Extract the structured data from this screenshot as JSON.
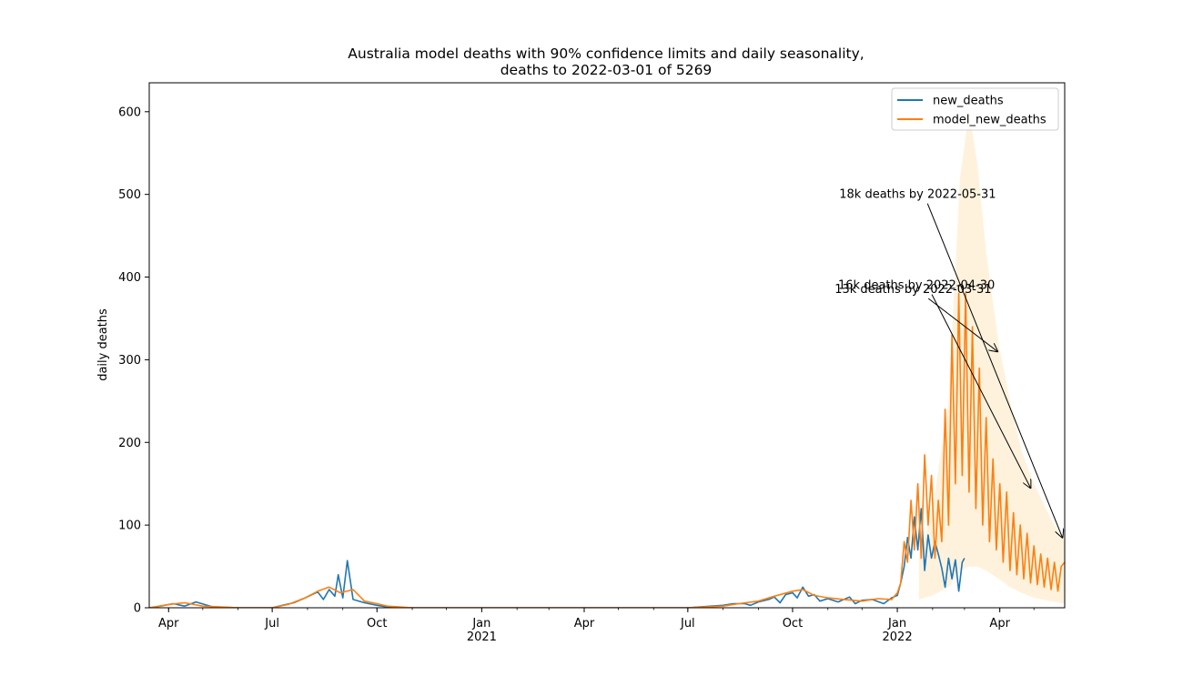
{
  "colors": {
    "new_deaths": "#1f77b4",
    "model_new_deaths": "#ff7f0e",
    "confidence_band": "#ffe3b3",
    "background": "#ffffff",
    "axes": "#000000"
  },
  "chart_data": {
    "type": "line",
    "title_line1": "Australia model deaths with 90% confidence limits and daily seasonality,",
    "title_line2": "deaths to 2022-03-01 of 5269",
    "xlabel": "",
    "ylabel": "daily deaths",
    "xlim": [
      "2020-03-15",
      "2022-05-28"
    ],
    "ylim": [
      0,
      635
    ],
    "grid": false,
    "legend_position": "top-right",
    "y_ticks": [
      0,
      100,
      200,
      300,
      400,
      500,
      600
    ],
    "y_tick_labels": [
      "0",
      "100",
      "200",
      "300",
      "400",
      "500",
      "600"
    ],
    "x_ticks": [
      {
        "date": "2020-04-01",
        "label": "Apr",
        "sub": ""
      },
      {
        "date": "2020-07-01",
        "label": "Jul",
        "sub": ""
      },
      {
        "date": "2020-10-01",
        "label": "Oct",
        "sub": ""
      },
      {
        "date": "2021-01-01",
        "label": "Jan",
        "sub": "2021"
      },
      {
        "date": "2021-04-01",
        "label": "Apr",
        "sub": ""
      },
      {
        "date": "2021-07-01",
        "label": "Jul",
        "sub": ""
      },
      {
        "date": "2021-10-01",
        "label": "Oct",
        "sub": ""
      },
      {
        "date": "2022-01-01",
        "label": "Jan",
        "sub": "2022"
      },
      {
        "date": "2022-04-01",
        "label": "Apr",
        "sub": ""
      }
    ],
    "series": [
      {
        "name": "new_deaths",
        "x": [
          "2020-03-15",
          "2020-03-25",
          "2020-04-05",
          "2020-04-15",
          "2020-04-25",
          "2020-05-10",
          "2020-06-01",
          "2020-07-01",
          "2020-07-10",
          "2020-07-20",
          "2020-07-30",
          "2020-08-05",
          "2020-08-10",
          "2020-08-15",
          "2020-08-20",
          "2020-08-25",
          "2020-08-28",
          "2020-09-01",
          "2020-09-05",
          "2020-09-10",
          "2020-09-20",
          "2020-10-01",
          "2020-10-10",
          "2020-10-20",
          "2020-11-01",
          "2021-01-01",
          "2021-04-01",
          "2021-07-01",
          "2021-08-01",
          "2021-08-10",
          "2021-08-20",
          "2021-08-25",
          "2021-09-01",
          "2021-09-10",
          "2021-09-15",
          "2021-09-20",
          "2021-09-25",
          "2021-10-01",
          "2021-10-05",
          "2021-10-10",
          "2021-10-15",
          "2021-10-20",
          "2021-10-25",
          "2021-11-01",
          "2021-11-10",
          "2021-11-20",
          "2021-11-25",
          "2021-12-01",
          "2021-12-10",
          "2021-12-20",
          "2021-12-27",
          "2022-01-01",
          "2022-01-04",
          "2022-01-07",
          "2022-01-10",
          "2022-01-13",
          "2022-01-16",
          "2022-01-19",
          "2022-01-22",
          "2022-01-25",
          "2022-01-28",
          "2022-01-31",
          "2022-02-03",
          "2022-02-06",
          "2022-02-09",
          "2022-02-12",
          "2022-02-15",
          "2022-02-18",
          "2022-02-21",
          "2022-02-24",
          "2022-02-27",
          "2022-03-01"
        ],
        "values": [
          0,
          2,
          5,
          2,
          7,
          1,
          0,
          0,
          3,
          6,
          12,
          16,
          19,
          10,
          22,
          14,
          40,
          12,
          57,
          10,
          6,
          3,
          1,
          0,
          0,
          0,
          0,
          0,
          3,
          5,
          5,
          3,
          7,
          10,
          13,
          6,
          16,
          18,
          12,
          25,
          14,
          16,
          8,
          11,
          7,
          13,
          5,
          9,
          10,
          5,
          12,
          15,
          30,
          50,
          85,
          60,
          110,
          70,
          120,
          45,
          88,
          60,
          80,
          65,
          48,
          25,
          60,
          35,
          58,
          20,
          55,
          60
        ]
      },
      {
        "name": "model_new_deaths",
        "x": [
          "2020-03-15",
          "2020-04-01",
          "2020-04-15",
          "2020-05-01",
          "2020-06-01",
          "2020-07-01",
          "2020-07-15",
          "2020-07-30",
          "2020-08-10",
          "2020-08-20",
          "2020-08-30",
          "2020-09-10",
          "2020-09-20",
          "2020-10-01",
          "2020-10-10",
          "2020-10-20",
          "2020-11-01",
          "2021-01-01",
          "2021-04-01",
          "2021-07-01",
          "2021-08-01",
          "2021-08-15",
          "2021-09-01",
          "2021-09-15",
          "2021-10-01",
          "2021-10-10",
          "2021-10-20",
          "2021-11-01",
          "2021-11-15",
          "2021-12-01",
          "2021-12-15",
          "2021-12-27",
          "2022-01-01",
          "2022-01-04",
          "2022-01-07",
          "2022-01-10",
          "2022-01-13",
          "2022-01-16",
          "2022-01-19",
          "2022-01-22",
          "2022-01-25",
          "2022-01-28",
          "2022-01-31",
          "2022-02-03",
          "2022-02-06",
          "2022-02-09",
          "2022-02-12",
          "2022-02-15",
          "2022-02-18",
          "2022-02-21",
          "2022-02-24",
          "2022-02-27",
          "2022-03-02",
          "2022-03-05",
          "2022-03-08",
          "2022-03-11",
          "2022-03-14",
          "2022-03-17",
          "2022-03-20",
          "2022-03-23",
          "2022-03-26",
          "2022-03-29",
          "2022-04-01",
          "2022-04-04",
          "2022-04-07",
          "2022-04-10",
          "2022-04-13",
          "2022-04-16",
          "2022-04-19",
          "2022-04-22",
          "2022-04-25",
          "2022-04-28",
          "2022-05-01",
          "2022-05-04",
          "2022-05-07",
          "2022-05-10",
          "2022-05-13",
          "2022-05-16",
          "2022-05-19",
          "2022-05-22",
          "2022-05-25",
          "2022-05-28"
        ],
        "values": [
          0,
          4,
          6,
          2,
          0,
          0,
          4,
          12,
          20,
          25,
          18,
          22,
          8,
          5,
          2,
          1,
          0,
          0,
          0,
          0,
          2,
          5,
          8,
          14,
          20,
          22,
          15,
          12,
          10,
          8,
          11,
          10,
          18,
          30,
          80,
          55,
          130,
          70,
          150,
          60,
          185,
          100,
          160,
          60,
          130,
          80,
          240,
          100,
          330,
          150,
          380,
          160,
          380,
          140,
          340,
          120,
          290,
          100,
          230,
          80,
          180,
          70,
          150,
          55,
          140,
          45,
          115,
          40,
          100,
          35,
          90,
          30,
          75,
          28,
          65,
          25,
          60,
          22,
          55,
          20,
          50,
          55
        ]
      }
    ],
    "confidence_band": {
      "x": [
        "2022-01-20",
        "2022-02-01",
        "2022-02-15",
        "2022-02-25",
        "2022-03-05",
        "2022-03-12",
        "2022-03-20",
        "2022-03-31",
        "2022-04-10",
        "2022-04-20",
        "2022-05-01",
        "2022-05-15",
        "2022-05-28"
      ],
      "lower": [
        10,
        15,
        25,
        45,
        50,
        50,
        45,
        35,
        25,
        18,
        12,
        8,
        5
      ],
      "upper": [
        60,
        120,
        250,
        520,
        600,
        540,
        430,
        320,
        250,
        190,
        150,
        110,
        80
      ]
    },
    "annotations": [
      {
        "text": "18k deaths by 2022-05-31",
        "text_x": "2021-11-11",
        "text_y": 500,
        "target_x": "2022-05-26",
        "target_y": 85
      },
      {
        "text": "16k deaths by 2022-04-30",
        "text_x": "2021-11-10",
        "text_y": 390,
        "target_x": "2022-04-28",
        "target_y": 145
      },
      {
        "text": "13k deaths by 2022-03-31",
        "text_x": "2021-11-07",
        "text_y": 385,
        "target_x": "2022-03-30",
        "target_y": 310
      }
    ]
  }
}
